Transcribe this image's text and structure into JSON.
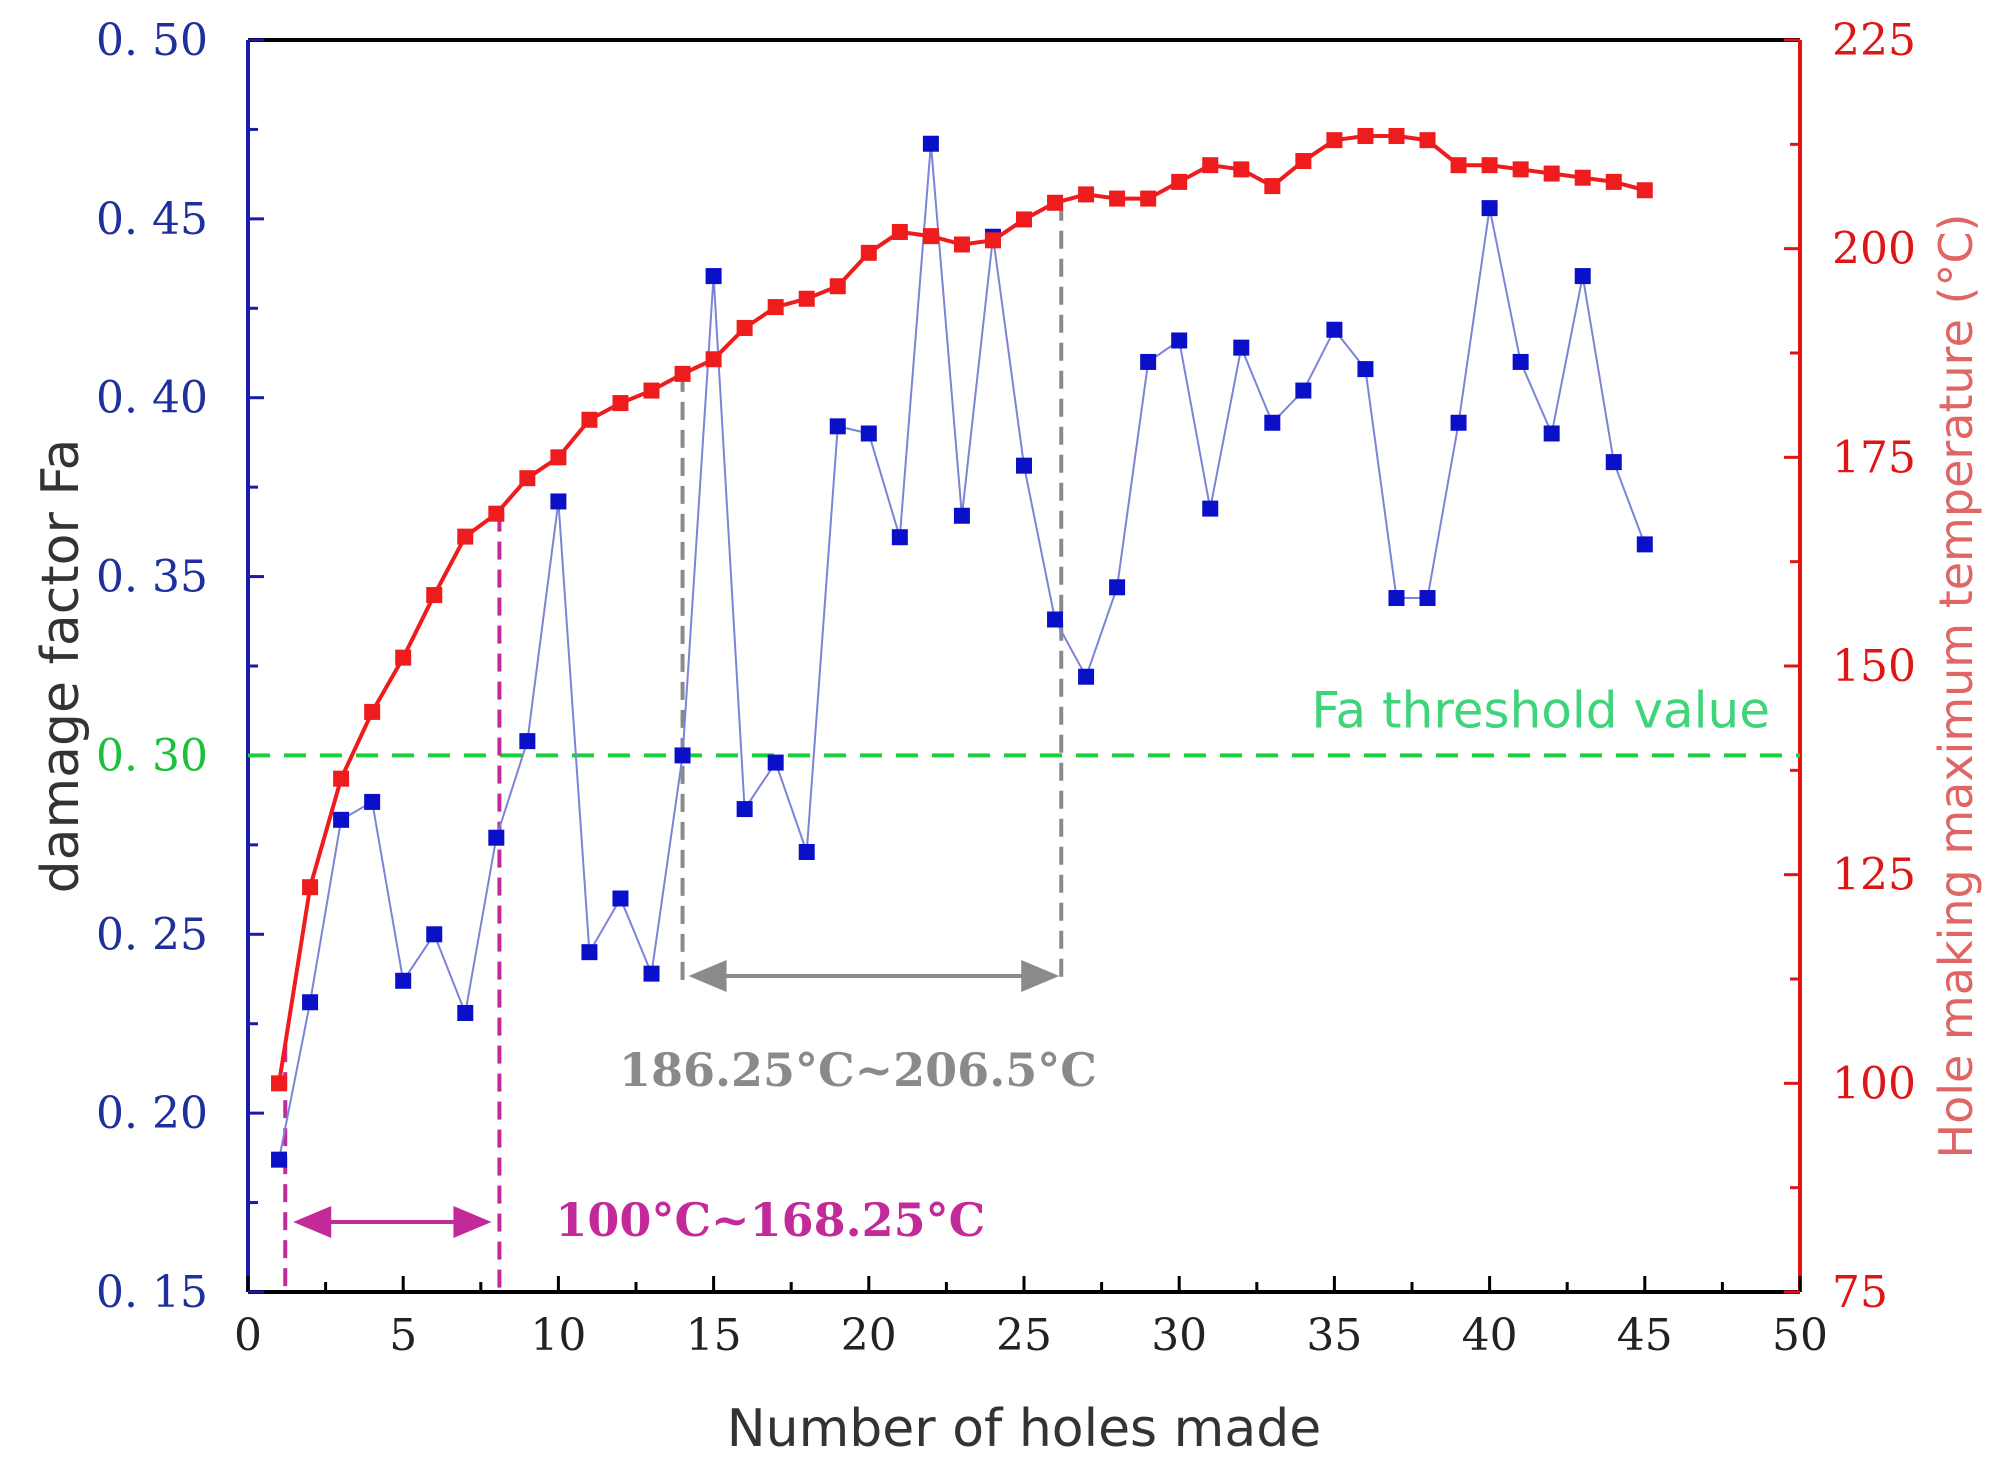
{
  "chart_data": {
    "type": "line",
    "xlabel": "Number of holes made",
    "ylabel_left": "damage factor Fa",
    "ylabel_right": "Hole making maximum temperature (°C)",
    "xlim": [
      0,
      50
    ],
    "ylim_left": [
      0.15,
      0.5
    ],
    "ylim_right": [
      75,
      225
    ],
    "x_ticks": [
      "0",
      "5",
      "10",
      "15",
      "20",
      "25",
      "30",
      "35",
      "40",
      "45",
      "50"
    ],
    "y_left_ticks": [
      "0. 15",
      "0. 20",
      "0. 25",
      "0. 30",
      "0. 35",
      "0. 40",
      "0. 45",
      "0. 50"
    ],
    "y_right_ticks": [
      "75",
      "100",
      "125",
      "150",
      "175",
      "200",
      "225"
    ],
    "series": [
      {
        "name": "damage factor Fa",
        "axis": "left",
        "color": "#0a10c8",
        "x": [
          1,
          2,
          3,
          4,
          5,
          6,
          7,
          8,
          9,
          10,
          11,
          12,
          13,
          14,
          15,
          16,
          17,
          18,
          19,
          20,
          21,
          22,
          23,
          24,
          25,
          26,
          27,
          28,
          29,
          30,
          31,
          32,
          33,
          34,
          35,
          36,
          37,
          38,
          39,
          40,
          41,
          42,
          43,
          44,
          45
        ],
        "values": [
          0.187,
          0.231,
          0.282,
          0.287,
          0.237,
          0.25,
          0.228,
          0.277,
          0.304,
          0.371,
          0.245,
          0.26,
          0.239,
          0.3,
          0.434,
          0.285,
          0.298,
          0.273,
          0.392,
          0.39,
          0.361,
          0.471,
          0.367,
          0.445,
          0.381,
          0.338,
          0.322,
          0.347,
          0.41,
          0.416,
          0.369,
          0.414,
          0.393,
          0.402,
          0.419,
          0.408,
          0.344,
          0.344,
          0.393,
          0.453,
          0.41,
          0.39,
          0.434,
          0.382,
          0.359
        ]
      },
      {
        "name": "Hole making maximum temperature",
        "axis": "right",
        "color": "#ee1c1c",
        "x": [
          1,
          2,
          3,
          4,
          5,
          6,
          7,
          8,
          9,
          10,
          11,
          12,
          13,
          14,
          15,
          16,
          17,
          18,
          19,
          20,
          21,
          22,
          23,
          24,
          25,
          26,
          27,
          28,
          29,
          30,
          31,
          32,
          33,
          34,
          35,
          36,
          37,
          38,
          39,
          40,
          41,
          42,
          43,
          44,
          45
        ],
        "values": [
          100,
          123.5,
          136.5,
          144.5,
          151,
          158.5,
          165.5,
          168.25,
          172.5,
          175,
          179.5,
          181.5,
          183,
          185,
          186.75,
          190.5,
          193,
          194,
          195.5,
          199.5,
          202,
          201.5,
          200.5,
          201,
          203.5,
          205.5,
          206.5,
          206,
          206,
          208,
          210,
          209.5,
          207.5,
          210.5,
          213,
          213.5,
          213.5,
          213,
          210,
          210,
          209.5,
          209,
          208.5,
          208,
          207
        ]
      }
    ],
    "threshold": {
      "value": 0.3,
      "label": "Fa threshold value",
      "color": "#19d13a"
    },
    "annotations": [
      {
        "text": "100°C~168.25°C",
        "x_start": 1.2,
        "x_end": 8.1,
        "color": "#c22a9a"
      },
      {
        "text": "186.25°C~206.5°C",
        "x_start": 14,
        "x_end": 26.2,
        "color": "#8a8a8a"
      }
    ],
    "colors": {
      "left_axis": "#1a1aa8",
      "right_axis": "#e01616",
      "magenta": "#c22a9a",
      "gray": "#8a8a8a"
    }
  }
}
